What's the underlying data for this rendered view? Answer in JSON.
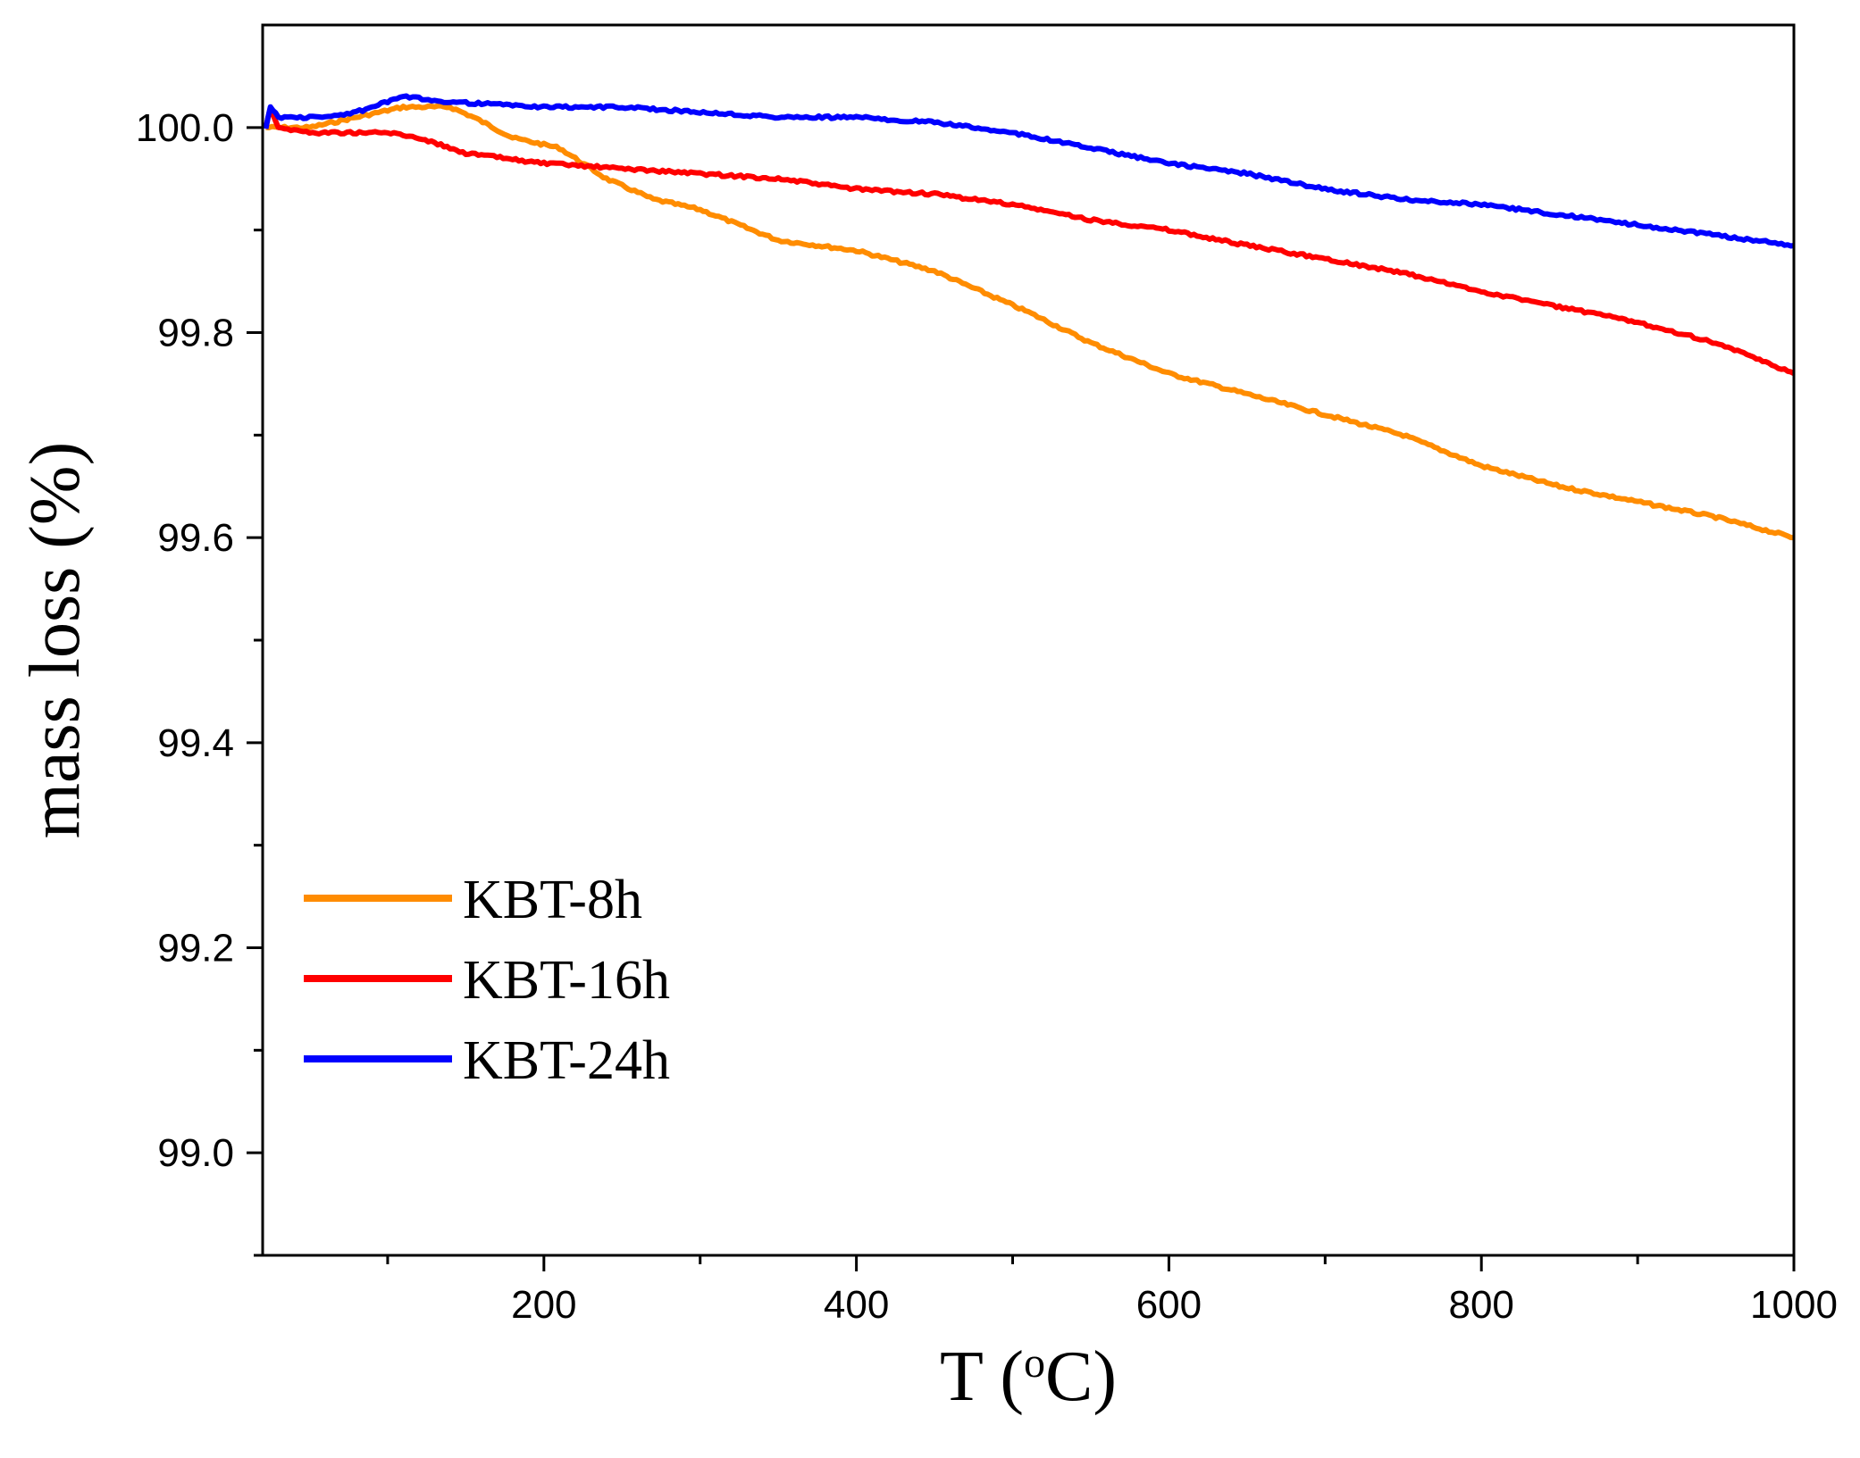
{
  "chart_data": {
    "type": "line",
    "title": "",
    "xlabel": "T (",
    "xlabel_sup": "o",
    "xlabel_tail": "C)",
    "ylabel": "mass loss (%)",
    "xlim": [
      20,
      1000
    ],
    "ylim": [
      98.9,
      100.1
    ],
    "x_ticks": [
      200,
      400,
      600,
      800,
      1000
    ],
    "x_tick_labels": [
      "200",
      "400",
      "600",
      "800",
      "1000"
    ],
    "y_ticks": [
      99.0,
      99.2,
      99.4,
      99.6,
      99.8,
      100.0
    ],
    "y_tick_labels": [
      "99.0",
      "99.2",
      "99.4",
      "99.6",
      "99.8",
      "100.0"
    ],
    "legend_position": "bottom-left",
    "series": [
      {
        "name": "KBT-8h",
        "color": "#ff8c00",
        "x": [
          22,
          30,
          50,
          80,
          110,
          140,
          155,
          180,
          210,
          240,
          270,
          300,
          350,
          400,
          450,
          480,
          510,
          550,
          600,
          650,
          700,
          750,
          800,
          850,
          900,
          950,
          1000
        ],
        "y": [
          100.0,
          100.0,
          100.0,
          100.01,
          100.02,
          100.02,
          100.01,
          99.99,
          99.98,
          99.95,
          99.93,
          99.92,
          99.89,
          99.88,
          99.86,
          99.84,
          99.82,
          99.79,
          99.76,
          99.74,
          99.72,
          99.7,
          99.67,
          99.65,
          99.635,
          99.62,
          99.6
        ]
      },
      {
        "name": "KBT-16h",
        "color": "#ff0000",
        "x": [
          22,
          25,
          30,
          50,
          100,
          120,
          150,
          200,
          250,
          300,
          350,
          400,
          450,
          500,
          550,
          600,
          650,
          700,
          750,
          800,
          850,
          900,
          950,
          1000
        ],
        "y": [
          100.0,
          100.02,
          100.0,
          99.995,
          99.995,
          99.99,
          99.975,
          99.965,
          99.96,
          99.955,
          99.95,
          99.94,
          99.935,
          99.925,
          99.91,
          99.9,
          99.885,
          99.872,
          99.858,
          99.84,
          99.825,
          99.81,
          99.79,
          99.76
        ]
      },
      {
        "name": "KBT-24h",
        "color": "#0000ff",
        "x": [
          22,
          25,
          30,
          60,
          80,
          110,
          140,
          200,
          250,
          300,
          350,
          400,
          450,
          500,
          550,
          600,
          650,
          700,
          750,
          800,
          850,
          900,
          950,
          1000
        ],
        "y": [
          100.0,
          100.02,
          100.01,
          100.01,
          100.015,
          100.03,
          100.025,
          100.02,
          100.02,
          100.015,
          100.01,
          100.01,
          100.005,
          99.995,
          99.98,
          99.965,
          99.955,
          99.94,
          99.93,
          99.925,
          99.915,
          99.905,
          99.895,
          99.885
        ]
      }
    ]
  }
}
